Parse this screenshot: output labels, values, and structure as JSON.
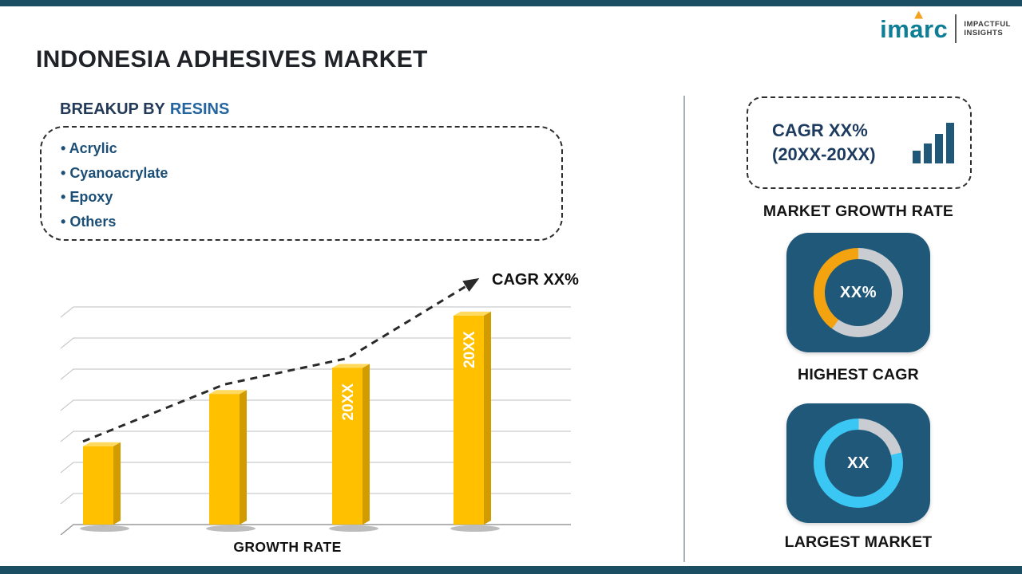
{
  "header": {
    "title": "INDONESIA ADHESIVES MARKET",
    "logo": {
      "brand": "imarc",
      "tagline1": "IMPACTFUL",
      "tagline2": "INSIGHTS"
    }
  },
  "left": {
    "heading_prefix": "BREAKUP BY",
    "heading_highlight": "RESINS",
    "resins": [
      "Acrylic",
      "Cyanoacrylate",
      "Epoxy",
      "Others"
    ]
  },
  "right": {
    "cagr_card": {
      "line1": "CAGR XX%",
      "line2": "(20XX-20XX)"
    },
    "market_growth_rate_label": "MARKET GROWTH RATE"
  },
  "colors": {
    "strip": "#1C4E63",
    "tile": "#20587A",
    "bar_yellow": "#FFC000",
    "accent_orange": "#F2A30F",
    "accent_cyan": "#3BC7F3",
    "ring_gray": "#C9CDD2",
    "heading_blue": "#2465a0",
    "brand_teal": "#0E7E96"
  },
  "chart_data": [
    {
      "type": "bar",
      "title": "GROWTH RATE",
      "categories": [
        "",
        "",
        "20XX",
        "20XX"
      ],
      "bar_labels": [
        "",
        "",
        "20XX",
        "20XX"
      ],
      "values": [
        36,
        60,
        72,
        96
      ],
      "ylim": [
        0,
        100
      ],
      "xlabel": "GROWTH RATE",
      "ylabel": "",
      "grid": true,
      "gridlines": 8,
      "bar_color": "#FFC000",
      "bar_side_color": "#D29B00",
      "bar_top_color": "#FFDA5E",
      "trend": "dashed-arrow-increasing",
      "trend_annotation": "CAGR XX%"
    },
    {
      "type": "pie",
      "variant": "donut",
      "center_label": "XX%",
      "caption": "HIGHEST CAGR",
      "start_deg": 216,
      "slices": [
        {
          "name": "highlighted",
          "value": 40,
          "color": "#F2A30F"
        },
        {
          "name": "remainder",
          "value": 60,
          "color": "#C9CDD2"
        }
      ]
    },
    {
      "type": "pie",
      "variant": "donut",
      "center_label": "XX",
      "caption": "LARGEST MARKET",
      "start_deg": 76,
      "slices": [
        {
          "name": "highlighted",
          "value": 79,
          "color": "#3BC7F3"
        },
        {
          "name": "remainder",
          "value": 21,
          "color": "#C9CDD2"
        }
      ]
    }
  ]
}
